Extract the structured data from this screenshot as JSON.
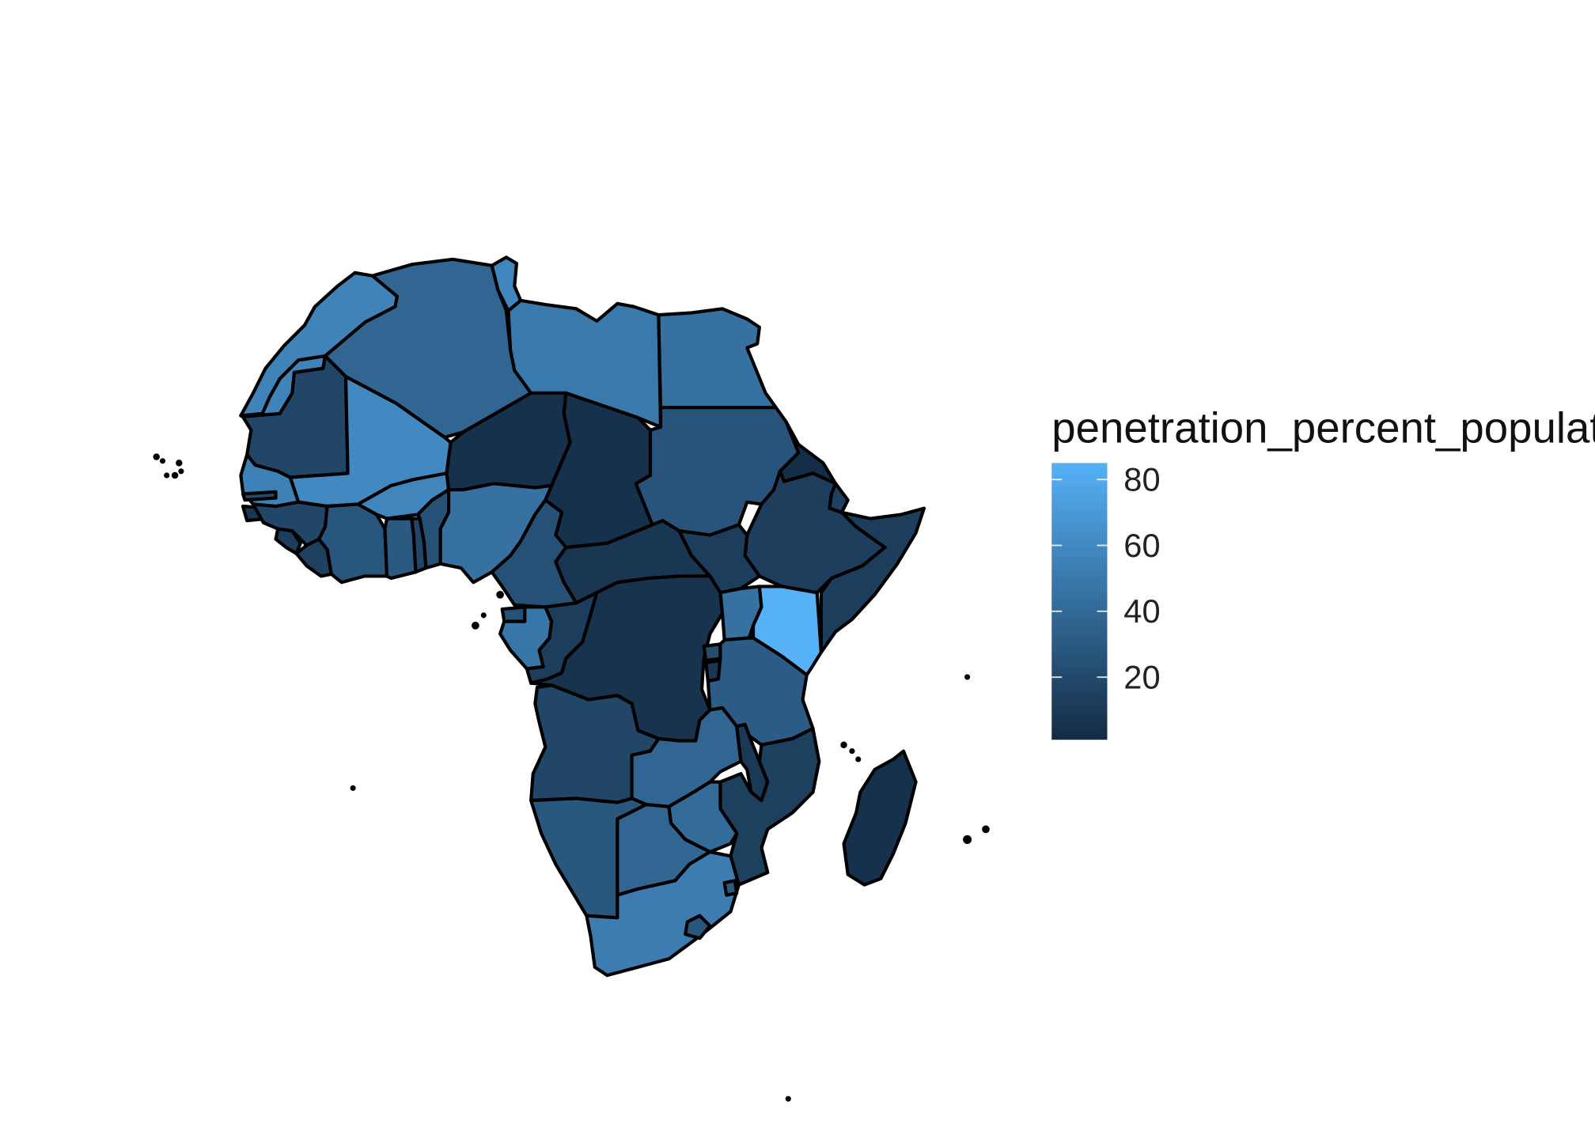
{
  "legend": {
    "title": "penetration_percent_population",
    "ticks": [
      20,
      40,
      60,
      80
    ],
    "scale_min": 1,
    "scale_max": 85,
    "color_low": "#132B43",
    "color_high": "#56B1F7"
  },
  "countries": [
    {
      "id": "morocco",
      "value": 56
    },
    {
      "id": "western-sahara",
      "value": 56
    },
    {
      "id": "algeria",
      "value": 38
    },
    {
      "id": "tunisia",
      "value": 58
    },
    {
      "id": "libya",
      "value": 50
    },
    {
      "id": "egypt",
      "value": 45
    },
    {
      "id": "mauritania",
      "value": 18
    },
    {
      "id": "mali",
      "value": 60
    },
    {
      "id": "niger",
      "value": 5
    },
    {
      "id": "chad",
      "value": 5
    },
    {
      "id": "sudan",
      "value": 27
    },
    {
      "id": "eritrea",
      "value": 3
    },
    {
      "id": "ethiopia",
      "value": 13
    },
    {
      "id": "djibouti",
      "value": 15
    },
    {
      "id": "somalia",
      "value": 12
    },
    {
      "id": "senegal",
      "value": 55
    },
    {
      "id": "gambia",
      "value": 20
    },
    {
      "id": "guinea-bissau",
      "value": 8
    },
    {
      "id": "guinea",
      "value": 18
    },
    {
      "id": "sierra-leone",
      "value": 12
    },
    {
      "id": "liberia",
      "value": 15
    },
    {
      "id": "cote-divoire",
      "value": 28
    },
    {
      "id": "burkina-faso",
      "value": 58
    },
    {
      "id": "ghana",
      "value": 30
    },
    {
      "id": "togo",
      "value": 18
    },
    {
      "id": "benin",
      "value": 25
    },
    {
      "id": "nigeria",
      "value": 45
    },
    {
      "id": "cameroon",
      "value": 25
    },
    {
      "id": "central-african-republic",
      "value": 8
    },
    {
      "id": "south-sudan",
      "value": 12
    },
    {
      "id": "equatorial-guinea",
      "value": 25
    },
    {
      "id": "gabon",
      "value": 48
    },
    {
      "id": "congo",
      "value": 12
    },
    {
      "id": "dr-congo",
      "value": 6
    },
    {
      "id": "uganda",
      "value": 45
    },
    {
      "id": "kenya",
      "value": 85
    },
    {
      "id": "rwanda",
      "value": 22
    },
    {
      "id": "burundi",
      "value": 8
    },
    {
      "id": "tanzania",
      "value": 32
    },
    {
      "id": "angola",
      "value": 18
    },
    {
      "id": "zambia",
      "value": 38
    },
    {
      "id": "malawi",
      "value": 10
    },
    {
      "id": "mozambique",
      "value": 14
    },
    {
      "id": "zimbabwe",
      "value": 41
    },
    {
      "id": "namibia",
      "value": 29
    },
    {
      "id": "botswana",
      "value": 38
    },
    {
      "id": "south-africa",
      "value": 52
    },
    {
      "id": "lesotho",
      "value": 28
    },
    {
      "id": "swaziland",
      "value": 30
    },
    {
      "id": "madagascar",
      "value": 5
    }
  ]
}
